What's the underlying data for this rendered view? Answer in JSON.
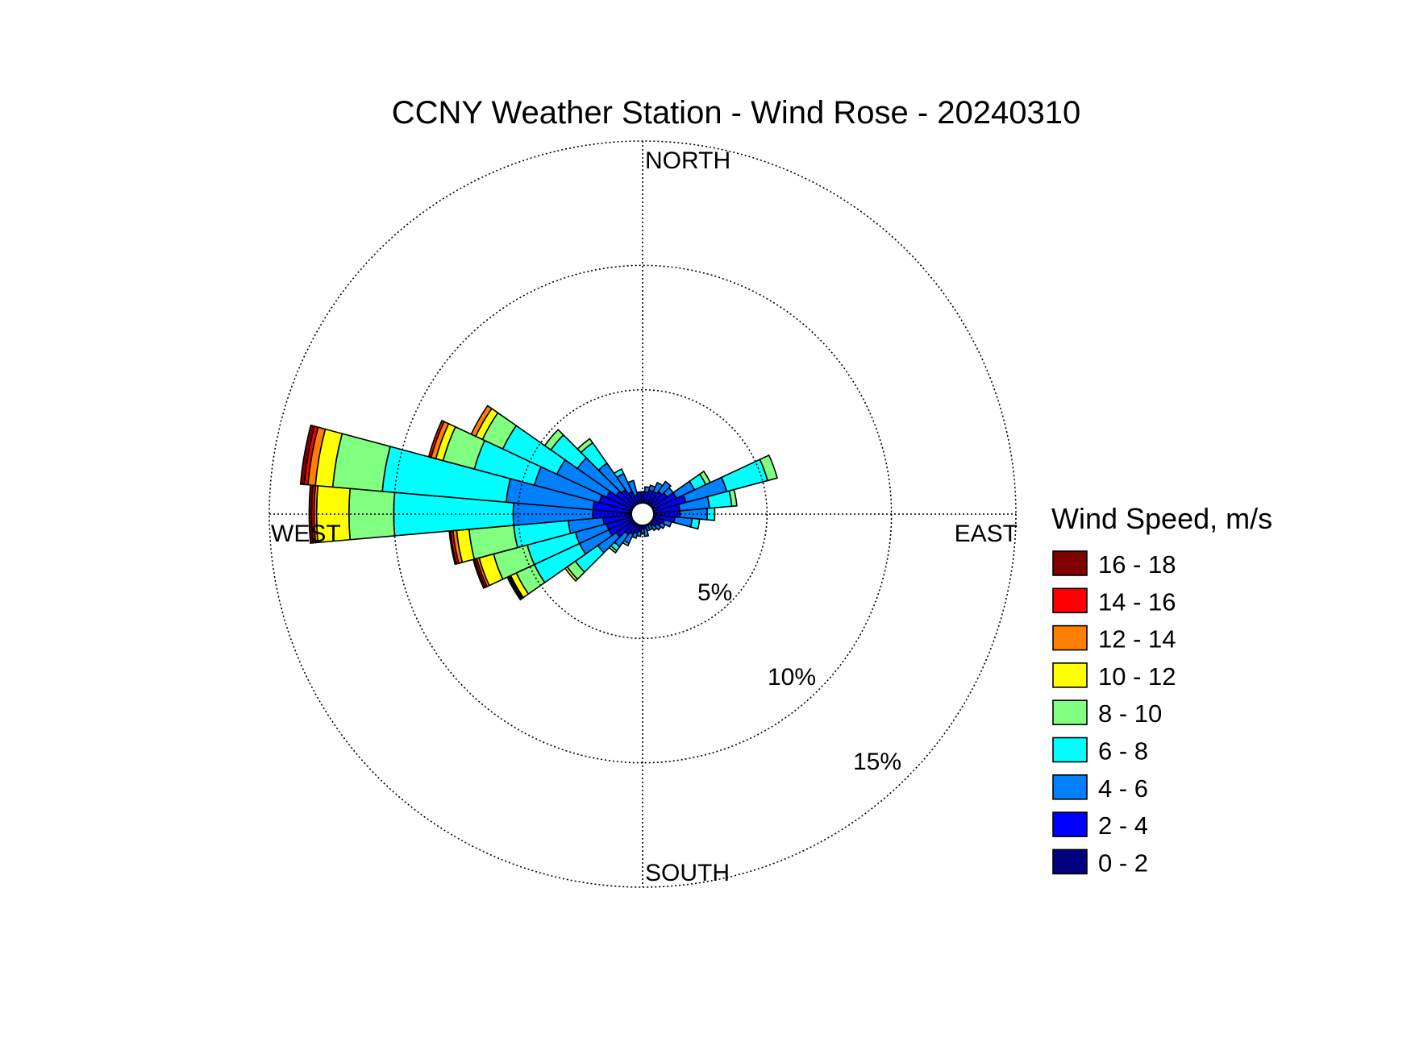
{
  "chart_data": {
    "type": "polar-stacked-bar",
    "title": "CCNY Weather Station - Wind Rose - 20240310",
    "directions": {
      "north": "NORTH",
      "east": "EAST",
      "south": "SOUTH",
      "west": "WEST"
    },
    "radial_ticks": [
      {
        "value": 5,
        "label": "5%"
      },
      {
        "value": 10,
        "label": "10%"
      },
      {
        "value": 15,
        "label": "15%"
      }
    ],
    "radial_max": 15,
    "legend": {
      "title": "Wind Speed, m/s",
      "placement": "right",
      "bins": [
        {
          "label": "16 - 18",
          "color": "#800000"
        },
        {
          "label": "14 - 16",
          "color": "#ff0000"
        },
        {
          "label": "12 - 14",
          "color": "#ff8000"
        },
        {
          "label": "10 - 12",
          "color": "#ffff00"
        },
        {
          "label": "8 - 10",
          "color": "#80ff80"
        },
        {
          "label": "6 - 8",
          "color": "#00ffff"
        },
        {
          "label": "4 - 6",
          "color": "#0080ff"
        },
        {
          "label": "2 - 4",
          "color": "#0000ff"
        },
        {
          "label": "0 - 2",
          "color": "#000080"
        }
      ]
    },
    "bin_order_inner_to_outer": [
      "0 - 2",
      "2 - 4",
      "4 - 6",
      "6 - 8",
      "8 - 10",
      "10 - 12",
      "12 - 14",
      "14 - 16",
      "16 - 18"
    ],
    "sector_width_deg": 10,
    "sectors": [
      {
        "dir": 0,
        "cum": [
          0.3,
          0.9
        ]
      },
      {
        "dir": 10,
        "cum": [
          0.3,
          0.9,
          1.1
        ]
      },
      {
        "dir": 20,
        "cum": [
          0.4,
          1.0,
          1.2
        ]
      },
      {
        "dir": 30,
        "cum": [
          0.4,
          1.0,
          1.4
        ]
      },
      {
        "dir": 40,
        "cum": [
          0.4,
          1.1,
          1.6
        ]
      },
      {
        "dir": 50,
        "cum": [
          0.4,
          1.2,
          1.5
        ]
      },
      {
        "dir": 60,
        "cum": [
          0.4,
          1.5,
          2.3,
          2.8,
          3.0
        ]
      },
      {
        "dir": 70,
        "cum": [
          0.4,
          1.8,
          3.5,
          5.2,
          5.6
        ]
      },
      {
        "dir": 80,
        "cum": [
          0.4,
          1.5,
          2.7,
          3.6,
          3.8
        ]
      },
      {
        "dir": 90,
        "cum": [
          0.4,
          1.5,
          2.6,
          2.9
        ]
      },
      {
        "dir": 100,
        "cum": [
          0.4,
          1.3,
          2.0,
          2.3
        ]
      },
      {
        "dir": 110,
        "cum": [
          0.3,
          0.9,
          1.2
        ]
      },
      {
        "dir": 120,
        "cum": [
          0.3,
          0.8,
          1.0
        ]
      },
      {
        "dir": 130,
        "cum": [
          0.3,
          0.7,
          0.9
        ]
      },
      {
        "dir": 140,
        "cum": [
          0.3,
          0.6,
          0.8
        ]
      },
      {
        "dir": 150,
        "cum": [
          0.3,
          0.5,
          0.7
        ]
      },
      {
        "dir": 160,
        "cum": [
          0.3,
          0.5,
          0.7
        ]
      },
      {
        "dir": 170,
        "cum": [
          0.3,
          0.6,
          0.9
        ]
      },
      {
        "dir": 180,
        "cum": [
          0.3,
          0.6,
          0.8
        ]
      },
      {
        "dir": 190,
        "cum": [
          0.3,
          0.7,
          0.9
        ]
      },
      {
        "dir": 200,
        "cum": [
          0.3,
          0.8,
          1.0
        ]
      },
      {
        "dir": 210,
        "cum": [
          0.4,
          0.9,
          1.3,
          1.4
        ]
      },
      {
        "dir": 220,
        "cum": [
          0.4,
          1.0,
          1.6,
          1.8,
          1.9
        ]
      },
      {
        "dir": 230,
        "cum": [
          0.4,
          1.3,
          2.2,
          3.3,
          3.7,
          3.8
        ]
      },
      {
        "dir": 240,
        "cum": [
          0.4,
          1.5,
          2.8,
          4.8,
          5.6,
          5.85,
          5.9,
          5.95,
          6.0
        ]
      },
      {
        "dir": 250,
        "cum": [
          0.4,
          1.5,
          2.8,
          4.8,
          6.2,
          6.8,
          6.9,
          6.98,
          7.05
        ]
      },
      {
        "dir": 260,
        "cum": [
          0.4,
          1.6,
          3.0,
          5.2,
          7.0,
          7.5,
          7.65,
          7.75,
          7.8
        ]
      },
      {
        "dir": 270,
        "cum": [
          0.5,
          2.0,
          5.2,
          10.0,
          11.8,
          13.1,
          13.2,
          13.3,
          13.4
        ]
      },
      {
        "dir": 280,
        "cum": [
          0.5,
          2.0,
          5.5,
          10.5,
          12.5,
          13.2,
          13.5,
          13.65,
          13.8
        ]
      },
      {
        "dir": 290,
        "cum": [
          0.4,
          1.8,
          4.5,
          7.0,
          8.3,
          8.6,
          8.8,
          8.9
        ]
      },
      {
        "dir": 300,
        "cum": [
          0.4,
          1.6,
          3.8,
          6.2,
          7.1,
          7.4,
          7.6
        ]
      },
      {
        "dir": 310,
        "cum": [
          0.4,
          1.3,
          3.2,
          4.5,
          4.8
        ]
      },
      {
        "dir": 320,
        "cum": [
          0.4,
          1.2,
          2.5,
          3.5,
          3.7
        ]
      },
      {
        "dir": 330,
        "cum": [
          0.3,
          1.0,
          1.8,
          2.0
        ]
      },
      {
        "dir": 340,
        "cum": [
          0.3,
          0.8,
          1.4
        ]
      },
      {
        "dir": 350,
        "cum": [
          0.3,
          0.9
        ]
      }
    ]
  }
}
